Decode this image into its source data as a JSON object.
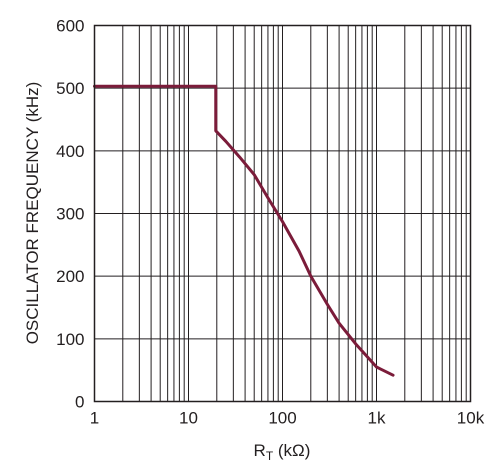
{
  "chart_data": {
    "type": "line",
    "title": "",
    "xlabel_main": "R",
    "xlabel_sub": "T",
    "xlabel_unit": " (kΩ)",
    "ylabel": "OSCILLATOR FREQUENCY (kHz)",
    "xscale": "log",
    "xlim": [
      1,
      10000
    ],
    "ylim": [
      0,
      600
    ],
    "x_ticks": [
      1,
      10,
      100,
      1000,
      10000
    ],
    "x_tick_labels": [
      "1",
      "10",
      "100",
      "1k",
      "10k"
    ],
    "y_ticks": [
      0,
      100,
      200,
      300,
      400,
      500,
      600
    ],
    "y_tick_labels": [
      "0",
      "100",
      "200",
      "300",
      "400",
      "500",
      "600"
    ],
    "grid": true,
    "legend": "none",
    "series": [
      {
        "color": "#7b1c3a",
        "x": [
          1,
          19.5,
          19.5,
          25,
          35,
          50,
          70,
          100,
          150,
          200,
          300,
          400,
          600,
          1000,
          1500
        ],
        "y": [
          503,
          503,
          432,
          415,
          390,
          362,
          325,
          287,
          240,
          200,
          155,
          125,
          92,
          55,
          42
        ]
      }
    ]
  }
}
